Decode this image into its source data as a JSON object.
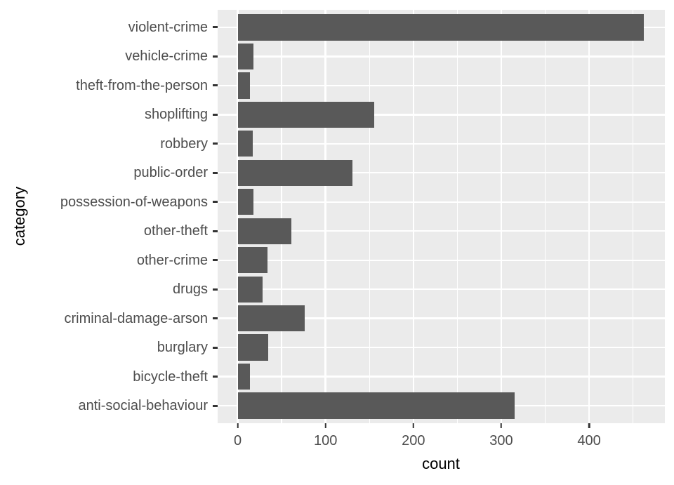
{
  "chart_data": {
    "type": "bar",
    "orientation": "horizontal",
    "title": "",
    "xlabel": "count",
    "ylabel": "category",
    "categories_order": "top-to-bottom",
    "categories": [
      "violent-crime",
      "vehicle-crime",
      "theft-from-the-person",
      "shoplifting",
      "robbery",
      "public-order",
      "possession-of-weapons",
      "other-theft",
      "other-crime",
      "drugs",
      "criminal-damage-arson",
      "burglary",
      "bicycle-theft",
      "anti-social-behaviour"
    ],
    "values": [
      462,
      18,
      14,
      155,
      17,
      131,
      18,
      61,
      34,
      28,
      76,
      35,
      14,
      315
    ],
    "x_major_ticks": [
      0,
      100,
      200,
      300,
      400
    ],
    "x_minor_gridlines": [
      50,
      150,
      250,
      350,
      450
    ],
    "xlim": [
      -22.8,
      486.2
    ],
    "bar_width_fraction": 0.9,
    "grid": true,
    "legend": "none",
    "colors": {
      "bar_fill": "#595959",
      "panel_background": "#EBEBEB",
      "gridline": "#FFFFFF",
      "tick_label": "#4D4D4D",
      "axis_title": "#000000",
      "tick_mark": "#333333",
      "figure_background": "#FFFFFF"
    }
  }
}
